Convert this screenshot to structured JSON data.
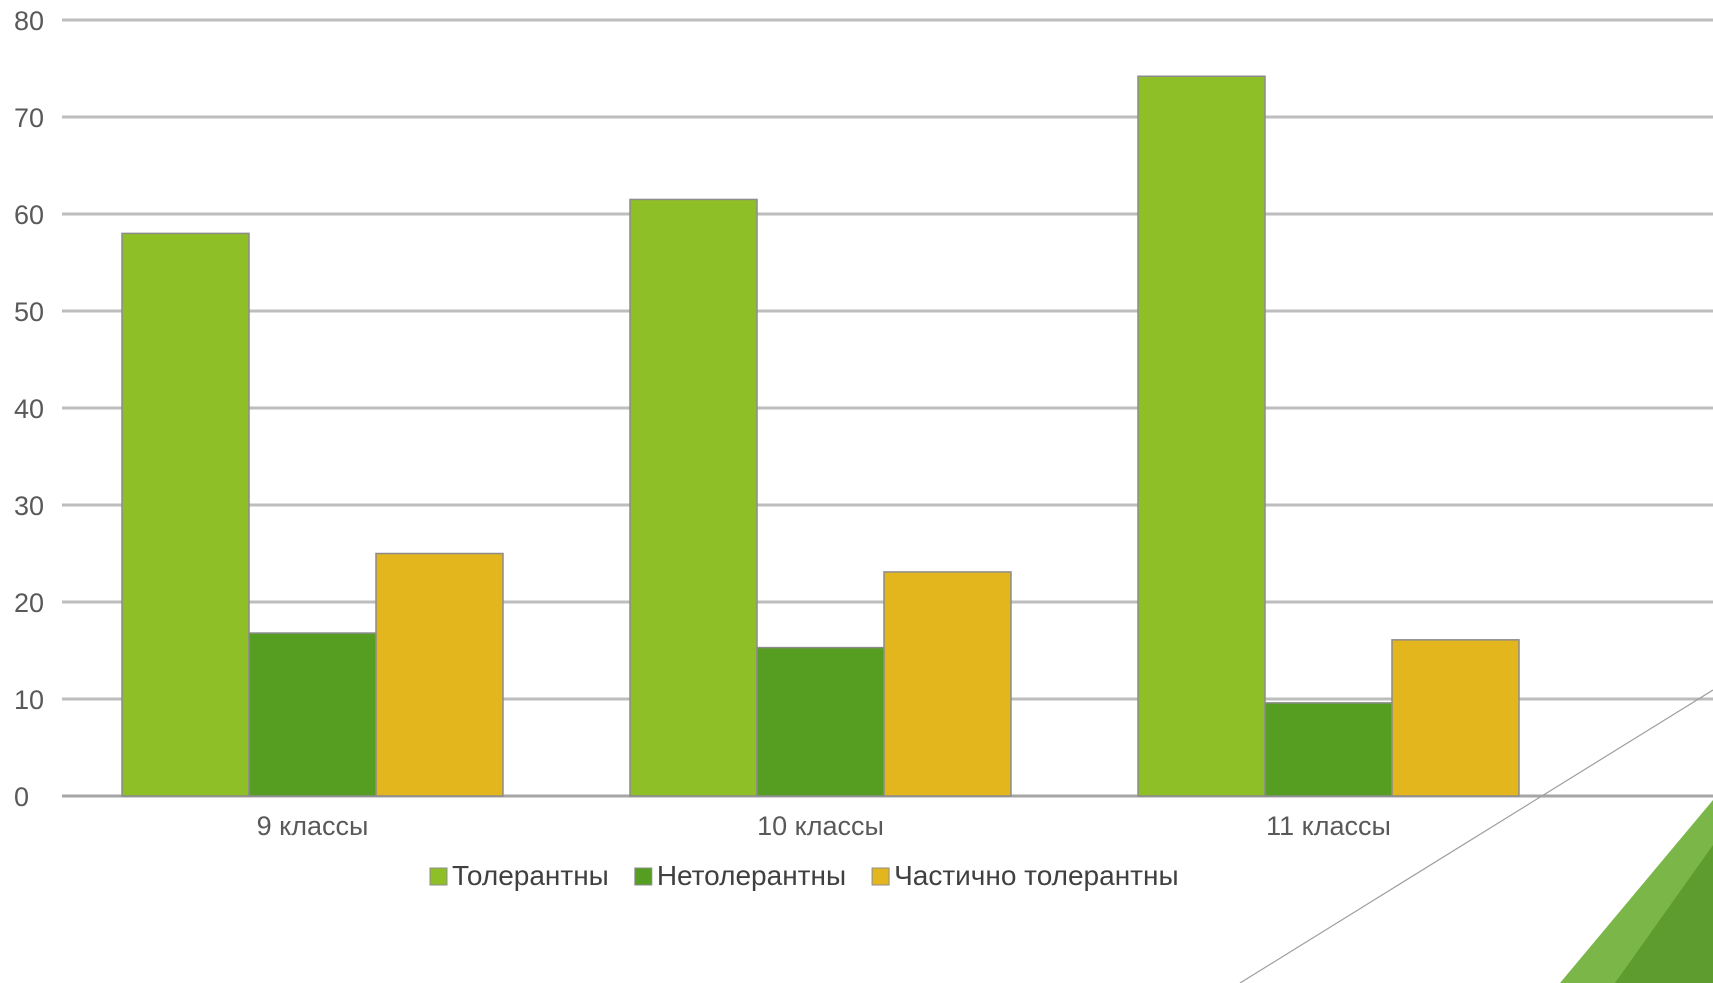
{
  "chart_data": {
    "type": "bar",
    "title": "",
    "xlabel": "",
    "ylabel": "",
    "categories": [
      "9 классы",
      "10 классы",
      "11 классы"
    ],
    "series": [
      {
        "name": "Толерантны",
        "color": "#8fbf26",
        "values": [
          58,
          61.5,
          74.2
        ]
      },
      {
        "name": "Нетолерантны",
        "color": "#569e22",
        "values": [
          16.8,
          15.3,
          9.6
        ]
      },
      {
        "name": "Частично толерантны",
        "color": "#e3b61e",
        "values": [
          25,
          23.1,
          16.1
        ]
      }
    ],
    "ylim": [
      0,
      80
    ],
    "yticks": [
      "0",
      "10",
      "20",
      "30",
      "40",
      "50",
      "60",
      "70",
      "80"
    ],
    "grid": true,
    "legend_position": "bottom"
  },
  "decoration": {
    "corner_accent_color": "#7ab648"
  }
}
